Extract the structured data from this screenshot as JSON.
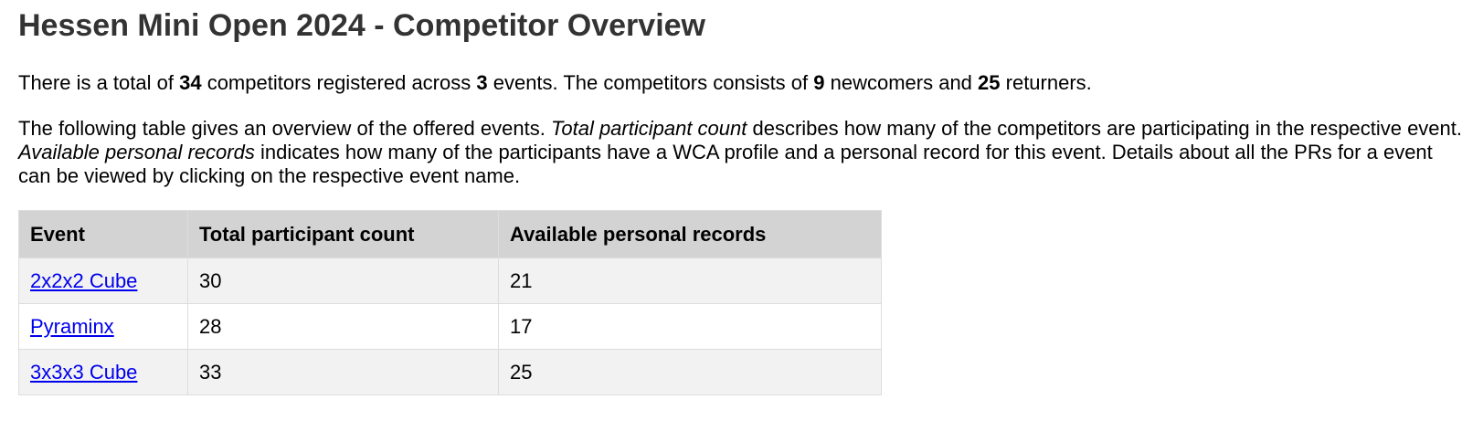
{
  "title": "Hessen Mini Open 2024 - Competitor Overview",
  "summary": {
    "t1": "There is a total of ",
    "total": "34",
    "t2": " competitors registered across ",
    "events": "3",
    "t3": " events. The competitors consists of ",
    "newcomers": "9",
    "t4": " newcomers and ",
    "returners": "25",
    "t5": " returners."
  },
  "description": {
    "t1": "The following table gives an overview of the offered events. ",
    "em1": "Total participant count",
    "t2": " describes how many of the competitors are participating in the respective event. ",
    "em2": "Available personal records",
    "t3": " indicates how many of the participants have a WCA profile and a personal record for this event. Details about all the PRs for a event can be viewed by clicking on the respective event name."
  },
  "table": {
    "headers": [
      "Event",
      "Total participant count",
      "Available personal records"
    ],
    "rows": [
      {
        "event": "2x2x2 Cube",
        "participants": "30",
        "records": "21"
      },
      {
        "event": "Pyraminx",
        "participants": "28",
        "records": "17"
      },
      {
        "event": "3x3x3 Cube",
        "participants": "33",
        "records": "25"
      }
    ]
  },
  "colors": {
    "heading": "#333333",
    "header_bg": "#d3d3d3",
    "row_alt_bg": "#f2f2f2",
    "link": "#0000ee"
  }
}
